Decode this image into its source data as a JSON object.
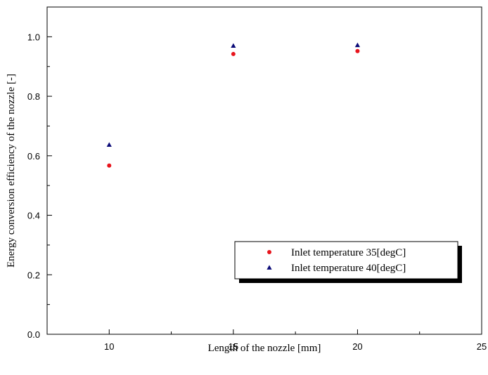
{
  "chart_data": {
    "type": "scatter",
    "title": "",
    "xlabel": "Length of the nozzle [mm]",
    "ylabel": "Energy conversion efficiency of the nozzle [-]",
    "xlim": [
      7.5,
      25
    ],
    "ylim": [
      0.0,
      1.1
    ],
    "x_ticks": [
      10,
      15,
      20,
      25
    ],
    "x_minor_ticks": [
      12.5,
      17.5,
      22.5
    ],
    "y_ticks": [
      0.0,
      0.2,
      0.4,
      0.6,
      0.8,
      1.0
    ],
    "y_minor_ticks": [
      0.1,
      0.3,
      0.5,
      0.7,
      0.9
    ],
    "x_tick_labels": [
      "10",
      "15",
      "20",
      "25"
    ],
    "y_tick_labels": [
      "0.0",
      "0.2",
      "0.4",
      "0.6",
      "0.8",
      "1.0"
    ],
    "grid": false,
    "legend_position": "bottom-right",
    "series": [
      {
        "name": "Inlet temperature 35[degC]",
        "marker": "circle",
        "color": "#e8141c",
        "x": [
          10,
          15,
          20
        ],
        "y": [
          0.567,
          0.942,
          0.952
        ]
      },
      {
        "name": "Inlet temperature 40[degC]",
        "marker": "triangle",
        "color": "#0b0b78",
        "x": [
          10,
          15,
          20
        ],
        "y": [
          0.637,
          0.97,
          0.972
        ]
      }
    ]
  }
}
